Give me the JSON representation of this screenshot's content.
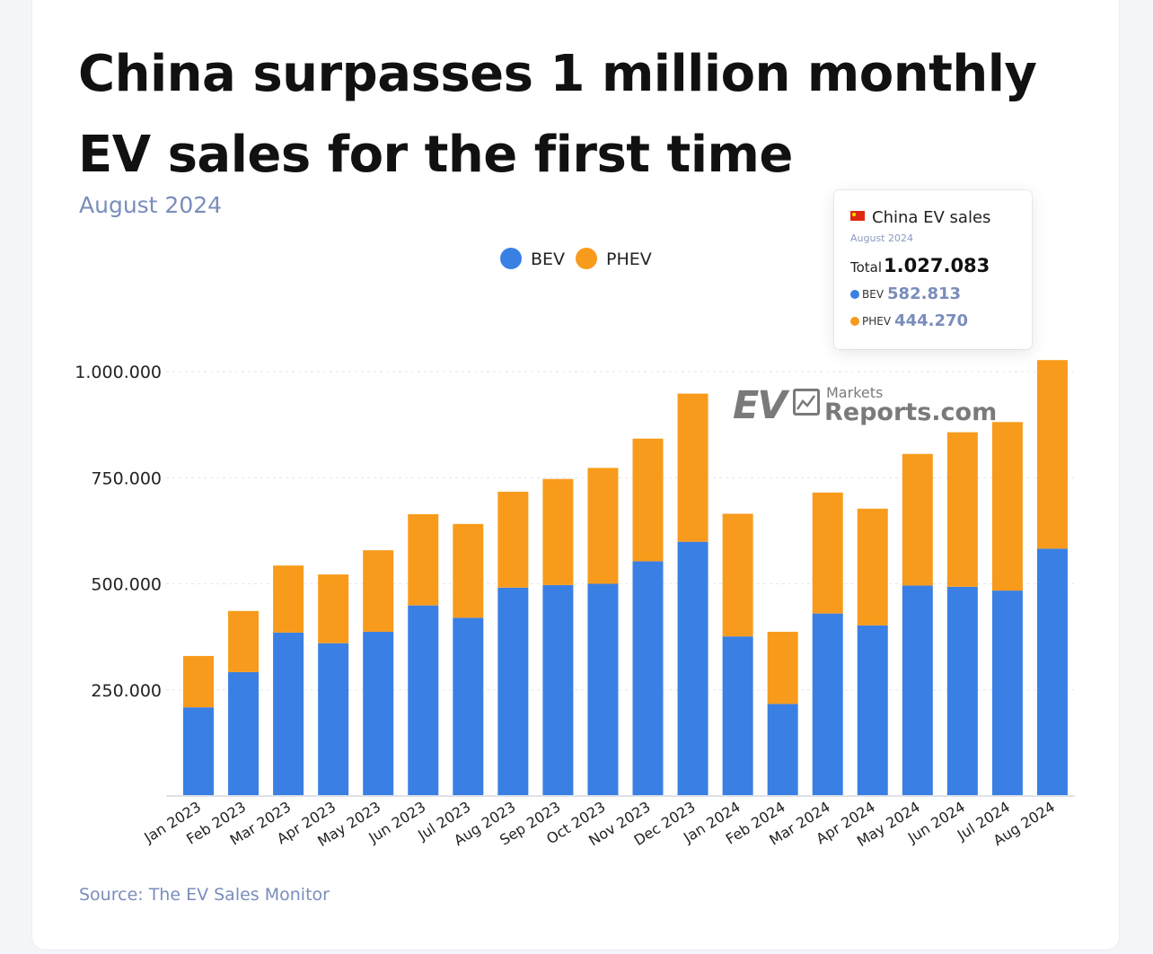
{
  "header": {
    "title": "China surpasses 1 million monthly EV sales for the first time",
    "subtitle": "August 2024"
  },
  "footer": {
    "source": "Source: The EV Sales Monitor"
  },
  "watermark": {
    "ev": "EV",
    "markets": "Markets",
    "reports": "Reports.com"
  },
  "tooltip": {
    "heading": "China EV sales",
    "date": "August 2024",
    "total_label": "Total",
    "total_value": "1.027.083",
    "bev_label": "BEV",
    "bev_value": "582.813",
    "phev_label": "PHEV",
    "phev_value": "444.270"
  },
  "colors": {
    "bev": "#3a7fe4",
    "phev": "#f89b1c",
    "grid": "#e3e6ec",
    "axis_text": "#222222"
  },
  "chart_data": {
    "type": "bar",
    "stacked": true,
    "categories": [
      "Jan 2023",
      "Feb 2023",
      "Mar 2023",
      "Apr 2023",
      "May 2023",
      "Jun 2023",
      "Jul 2023",
      "Aug 2023",
      "Sep 2023",
      "Oct 2023",
      "Nov 2023",
      "Dec 2023",
      "Jan 2024",
      "Feb 2024",
      "Mar 2024",
      "Apr 2024",
      "May 2024",
      "Jun 2024",
      "Jul 2024",
      "Aug 2024"
    ],
    "series": [
      {
        "name": "BEV",
        "color": "#3a7fe4",
        "values": [
          209000,
          292000,
          385000,
          360000,
          387000,
          449000,
          420000,
          491000,
          497000,
          500000,
          553000,
          599000,
          376000,
          217000,
          430000,
          402000,
          496000,
          493000,
          484000,
          582813
        ]
      },
      {
        "name": "PHEV",
        "color": "#f89b1c",
        "values": [
          121000,
          144000,
          158000,
          162000,
          192000,
          215000,
          221000,
          226000,
          250000,
          273000,
          289000,
          349000,
          289000,
          170000,
          285000,
          275000,
          310000,
          364000,
          397000,
          444270
        ]
      }
    ],
    "yticks": [
      250000,
      500000,
      750000,
      1000000
    ],
    "ytick_labels": [
      "250.000",
      "500.000",
      "750.000",
      "1.000.000"
    ],
    "ylim": [
      0,
      1000000
    ],
    "grid": true,
    "legend_position": "top-center"
  }
}
